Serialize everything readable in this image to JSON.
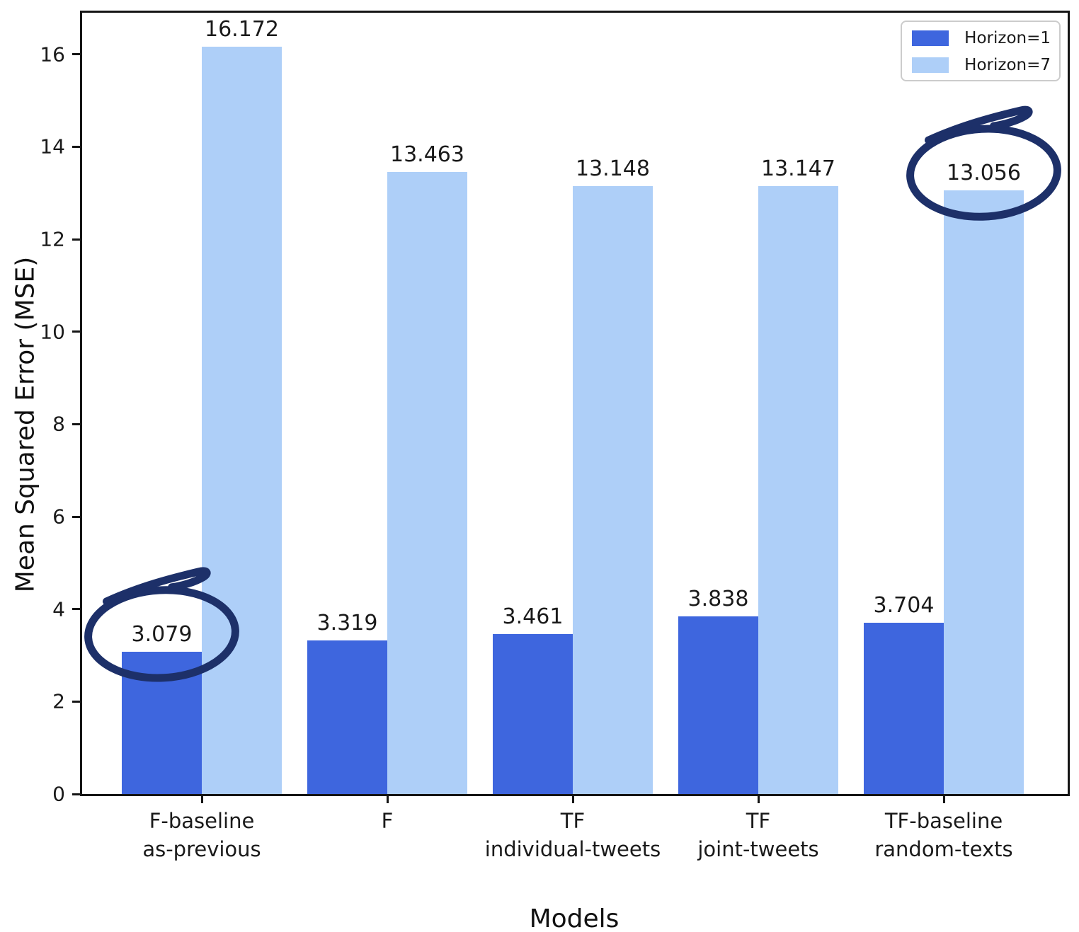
{
  "chart_data": {
    "type": "bar",
    "title": "",
    "xlabel": "Models",
    "ylabel": "Mean Squared Error (MSE)",
    "categories": [
      [
        "F-baseline",
        "as-previous"
      ],
      [
        "F"
      ],
      [
        "TF",
        "individual-tweets"
      ],
      [
        "TF",
        "joint-tweets"
      ],
      [
        "TF-baseline",
        "random-texts"
      ]
    ],
    "series": [
      {
        "name": "Horizon=1",
        "color": "#3e66de",
        "values": [
          3.079,
          3.319,
          3.461,
          3.838,
          3.704
        ]
      },
      {
        "name": "Horizon=7",
        "color": "#aecff8",
        "values": [
          16.172,
          13.463,
          13.148,
          13.147,
          13.056
        ]
      }
    ],
    "ylim": [
      0,
      16.9
    ],
    "yticks": [
      0,
      2,
      4,
      6,
      8,
      10,
      12,
      14,
      16
    ],
    "legend_position": "upper right",
    "grid": false,
    "value_label_decimals": 3
  },
  "annotations": [
    {
      "shape": "hand-drawn-ellipse",
      "series": "Horizon=1",
      "category_index": 0,
      "circled_value": 3.079,
      "color": "#1d3069"
    },
    {
      "shape": "hand-drawn-ellipse",
      "series": "Horizon=7",
      "category_index": 4,
      "circled_value": 13.056,
      "color": "#1d3069"
    }
  ],
  "colors": {
    "background": "#ffffff",
    "spine": "#151515",
    "text": "#1a1a1a"
  }
}
